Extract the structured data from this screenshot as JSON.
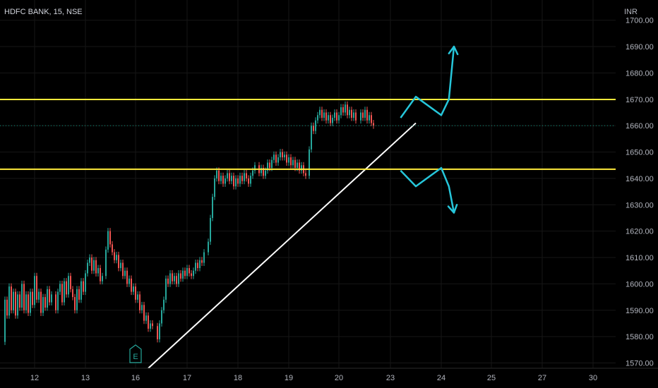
{
  "header": {
    "symbol_label": "HDFC BANK, 15, NSE",
    "currency": "INR"
  },
  "colors": {
    "up": "#26a69a",
    "down": "#ef5350",
    "level": "#ffeb3b",
    "trendline": "#ffffff",
    "arrow": "#26c6da",
    "last_price": "#089981"
  },
  "chart_data": {
    "type": "candlestick",
    "symbol": "HDFC BANK",
    "interval": "15",
    "exchange": "NSE",
    "currency": "INR",
    "ylim": [
      1568,
      1705
    ],
    "y_ticks": [
      1570,
      1580,
      1590,
      1600,
      1610,
      1620,
      1630,
      1640,
      1650,
      1660,
      1670,
      1680,
      1690,
      1700
    ],
    "y_tick_labels": [
      "1570.00",
      "1580.00",
      "1590.00",
      "1600.00",
      "1610.00",
      "1620.00",
      "1630.00",
      "1640.00",
      "1650.00",
      "1660.00",
      "1670.00",
      "1680.00",
      "1690.00",
      "1700.00"
    ],
    "x_ticks": [
      "12",
      "13",
      "16",
      "17",
      "18",
      "19",
      "20",
      "23",
      "24",
      "25",
      "27",
      "30"
    ],
    "candles": [
      {
        "day": "12",
        "path": [
          1578,
          1594,
          1588,
          1599,
          1590,
          1597,
          1588,
          1596,
          1591,
          1600,
          1590,
          1596,
          1589,
          1597,
          1592,
          1603,
          1594,
          1597,
          1589,
          1595,
          1591,
          1598,
          1593,
          1596
        ]
      },
      {
        "day": "13",
        "path": [
          1596,
          1590,
          1597,
          1600,
          1593,
          1601,
          1596,
          1603,
          1598,
          1595,
          1590,
          1598,
          1594,
          1601,
          1597,
          1604,
          1608,
          1610,
          1605,
          1609,
          1604,
          1606,
          1601,
          1603
        ]
      },
      {
        "day": "16",
        "path": [
          1603,
          1613,
          1620,
          1615,
          1612,
          1609,
          1611,
          1606,
          1608,
          1603,
          1605,
          1600,
          1602,
          1597,
          1599,
          1594,
          1596,
          1590,
          1592,
          1586,
          1588,
          1583,
          1585,
          1584
        ]
      },
      {
        "day": "17",
        "path": [
          1584,
          1579,
          1585,
          1590,
          1594,
          1602,
          1600,
          1604,
          1601,
          1603,
          1600,
          1604,
          1602,
          1605,
          1603,
          1606,
          1604,
          1603,
          1605,
          1608,
          1606,
          1609,
          1608,
          1612
        ]
      },
      {
        "day": "18",
        "path": [
          1612,
          1616,
          1625,
          1633,
          1640,
          1643,
          1639,
          1641,
          1638,
          1640,
          1642,
          1639,
          1641,
          1637,
          1640,
          1638,
          1641,
          1639,
          1642,
          1640,
          1638,
          1641,
          1643,
          1645
        ]
      },
      {
        "day": "19",
        "path": [
          1645,
          1642,
          1644,
          1641,
          1643,
          1646,
          1644,
          1647,
          1649,
          1646,
          1648,
          1650,
          1648,
          1649,
          1646,
          1648,
          1645,
          1647,
          1644,
          1646,
          1643,
          1645,
          1642,
          1641
        ]
      },
      {
        "day": "20",
        "path": [
          1641,
          1651,
          1660,
          1658,
          1662,
          1664,
          1666,
          1663,
          1665,
          1662,
          1664,
          1661,
          1663,
          1665,
          1662,
          1664,
          1667,
          1665,
          1668,
          1664,
          1666,
          1663,
          1665,
          1662
        ]
      },
      {
        "day": "23",
        "path": [
          1662,
          1665,
          1663,
          1666,
          1662,
          1664,
          1661,
          1660
        ]
      }
    ],
    "levels": [
      {
        "value": 1669.95,
        "label": "1669.95"
      },
      {
        "value": 1643.5,
        "label": "1643.50"
      }
    ],
    "last_price": {
      "value": 1660.0,
      "label": "1660.00"
    },
    "trendline": {
      "from": {
        "day": "16",
        "offset": 0.25,
        "price": 1568
      },
      "to": {
        "day": "23",
        "offset": 0.5,
        "price": 1661
      }
    },
    "projections": [
      {
        "type": "breakout_up",
        "points": [
          [
            "23",
            0.2,
            1663
          ],
          [
            "23",
            0.5,
            1671
          ],
          [
            "24",
            0.0,
            1664
          ],
          [
            "24",
            0.15,
            1670
          ],
          [
            "24",
            0.25,
            1690
          ]
        ]
      },
      {
        "type": "breakdown_down",
        "points": [
          [
            "23",
            0.2,
            1643
          ],
          [
            "23",
            0.5,
            1637
          ],
          [
            "24",
            0.0,
            1644
          ],
          [
            "24",
            0.15,
            1637
          ],
          [
            "24",
            0.25,
            1627
          ]
        ]
      }
    ],
    "event_marker": {
      "day": "16",
      "label": "E"
    }
  }
}
